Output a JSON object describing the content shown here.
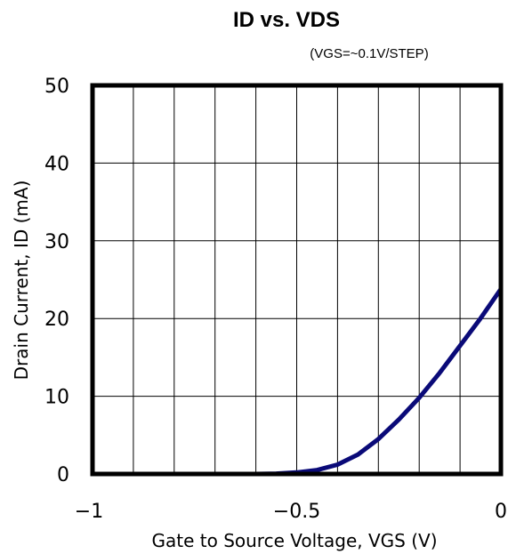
{
  "chart_data": {
    "type": "line",
    "title": "ID vs. VDS",
    "subtitle": "(VGS=~0.1V/STEP)",
    "xlabel": "Gate to Source Voltage, VGS (V)",
    "ylabel": "Drain Current, ID (mA)",
    "xlim": [
      -1,
      0
    ],
    "ylim": [
      0,
      50
    ],
    "x_tick_labels": [
      "−1",
      "−0.5",
      "0"
    ],
    "y_tick_labels": [
      "0",
      "10",
      "20",
      "30",
      "40",
      "50"
    ],
    "grid": true,
    "series": [
      {
        "color": "#0a0a78",
        "x": [
          -0.8,
          -0.7,
          -0.6,
          -0.55,
          -0.5,
          -0.45,
          -0.4,
          -0.35,
          -0.3,
          -0.25,
          -0.2,
          -0.15,
          -0.1,
          -0.05,
          0.0
        ],
        "values": [
          0,
          0,
          0,
          0.05,
          0.2,
          0.5,
          1.2,
          2.5,
          4.5,
          7.0,
          9.8,
          13.0,
          16.5,
          20.0,
          23.8
        ]
      }
    ]
  }
}
